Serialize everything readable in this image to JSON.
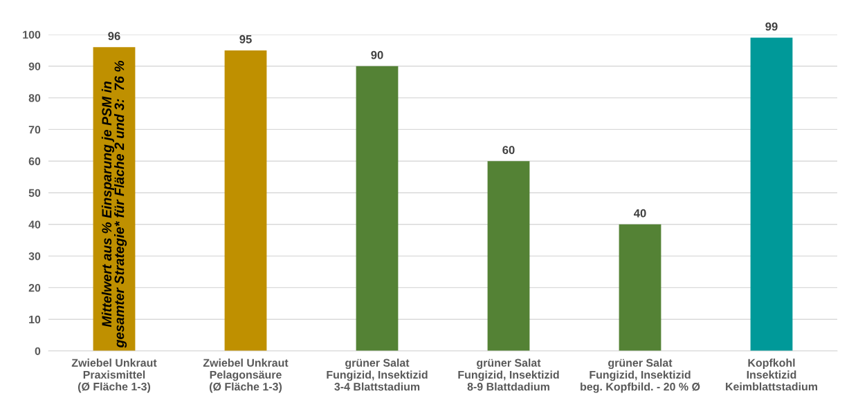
{
  "chart_data": {
    "type": "bar",
    "categories": [
      "Zwiebel Unkraut\nPraxismittel\n(Ø Fläche 1-3)",
      "Zwiebel Unkraut\nPelagonsäure\n(Ø Fläche 1-3)",
      "grüner Salat\nFungizid, Insektizid\n3-4 Blattstadium",
      "grüner Salat\nFungizid, Insektizid\n8-9 Blattdadium",
      "grüner Salat\nFungizid, Insektizid\nbeg. Kopfbild. - 20 % Ø",
      "Kopfkohl\nInsektizid\nKeimblattstadium"
    ],
    "values": [
      96,
      95,
      90,
      60,
      40,
      99
    ],
    "colors": [
      "#bf9000",
      "#bf9000",
      "#548235",
      "#548235",
      "#548235",
      "#009999"
    ],
    "ylim": [
      0,
      100
    ],
    "yticks": [
      0,
      10,
      20,
      30,
      40,
      50,
      60,
      70,
      80,
      90,
      100
    ],
    "grid": "y",
    "data_labels": true,
    "annotations": [
      "Mittelwert aus % Einsparung je PSM in\ngesamter Strategie* für Fläche 2 und 3:  76 %"
    ]
  }
}
